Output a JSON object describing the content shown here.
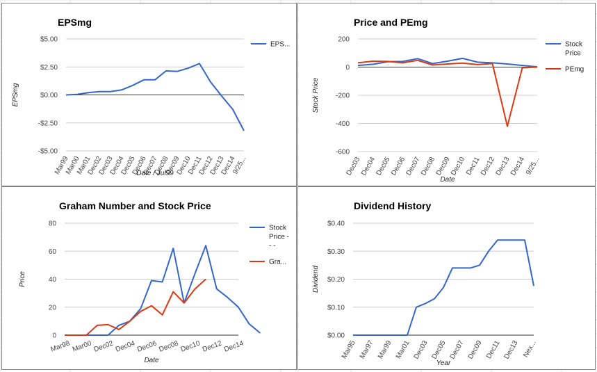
{
  "chart_data": [
    {
      "id": "eps",
      "type": "line",
      "title": "EPSmg",
      "xlabel": "Date / Jul99",
      "ylabel": "EPSmg",
      "categories": [
        "Mar99",
        "Mar00",
        "Mar01",
        "Dec02",
        "Dec03",
        "Dec04",
        "Dec05",
        "Dec06",
        "Dec07",
        "Dec08",
        "Dec09",
        "Dec10",
        "Dec11",
        "Dec12",
        "Dec13",
        "Dec14",
        "9/25..."
      ],
      "x_index": [
        0,
        0.5,
        1,
        1.5,
        2,
        2.5,
        3,
        3.5,
        4,
        4.5,
        5,
        5.5,
        6,
        6.5,
        7,
        7.5,
        8,
        8.5,
        9,
        9.5,
        10,
        10.5,
        11,
        11.5,
        12,
        12.5,
        13,
        13.5,
        14,
        14.5,
        15,
        15.5,
        16
      ],
      "series": [
        {
          "name": "EPS...",
          "color": "#3366cc",
          "x": [
            0,
            1,
            2,
            3,
            4,
            5,
            6,
            7,
            8,
            9,
            10,
            11,
            12,
            13,
            14,
            15,
            16
          ],
          "values": [
            0.0,
            0.05,
            0.2,
            0.3,
            0.3,
            0.45,
            0.85,
            1.35,
            1.35,
            2.15,
            2.1,
            2.4,
            2.8,
            1.15,
            -0.1,
            -1.3,
            -3.2
          ]
        }
      ],
      "yticks": [
        5,
        2.5,
        0,
        -2.5,
        -5
      ],
      "ytick_labels": [
        "$5.00",
        "$2.50",
        "$0.00",
        "-$2.50",
        "-$5.00"
      ],
      "ylim": [
        -5,
        5
      ],
      "legend": "right"
    },
    {
      "id": "pe",
      "type": "line",
      "title": "Price and PEmg",
      "xlabel": "Date",
      "ylabel": "Stock Price",
      "categories": [
        "Dec03",
        "Dec04",
        "Dec05",
        "Dec06",
        "Dec07",
        "Dec08",
        "Dec09",
        "Dec10",
        "Dec11",
        "Dec12",
        "Dec13",
        "Dec14",
        "9/25..."
      ],
      "series": [
        {
          "name": "Stock Price",
          "color": "#3366cc",
          "values": [
            12,
            20,
            38,
            40,
            60,
            25,
            42,
            62,
            35,
            30,
            22,
            12,
            2
          ]
        },
        {
          "name": "PEmg",
          "color": "#dc3912",
          "values": [
            30,
            42,
            40,
            30,
            48,
            15,
            22,
            28,
            18,
            25,
            -420,
            -5,
            0
          ]
        }
      ],
      "yticks": [
        200,
        0,
        -200,
        -400,
        -600
      ],
      "ytick_labels": [
        "200",
        "0",
        "-200",
        "-400",
        "-600"
      ],
      "ylim": [
        -600,
        200
      ],
      "legend": "right"
    },
    {
      "id": "graham",
      "type": "line",
      "title": "Graham Number and Stock Price",
      "xlabel": "Date",
      "ylabel": "Price",
      "categories": [
        "Mar98",
        "Mar00",
        "Dec02",
        "Dec04",
        "Dec06",
        "Dec08",
        "Dec10",
        "Dec12",
        "Dec14"
      ],
      "series": [
        {
          "name": "Stock Price - - -",
          "color": "#3366cc",
          "x": [
            0,
            1,
            2,
            2.5,
            3,
            3.5,
            4,
            4.5,
            5,
            5.5,
            6,
            6.5,
            7,
            7.5,
            8,
            8.5,
            9
          ],
          "values": [
            0,
            0,
            0,
            7,
            10,
            19,
            39,
            38,
            62,
            23,
            44,
            64,
            33,
            27,
            20,
            8,
            1.5
          ]
        },
        {
          "name": "Gra...",
          "color": "#dc3912",
          "x": [
            0,
            1,
            1.5,
            2,
            2.5,
            3,
            3.5,
            4,
            4.5,
            5,
            5.5,
            6,
            6.5,
            7
          ],
          "values": [
            0,
            0,
            7,
            7.5,
            4,
            10,
            17,
            21,
            14.5,
            31,
            23,
            33,
            40,
            null
          ]
        }
      ],
      "yticks": [
        80,
        60,
        40,
        20,
        0
      ],
      "ytick_labels": [
        "80",
        "60",
        "40",
        "20",
        "0"
      ],
      "ylim": [
        0,
        80
      ],
      "legend": "right"
    },
    {
      "id": "div",
      "type": "line",
      "title": "Dividend History",
      "xlabel": "Year",
      "ylabel": "Dividend",
      "categories": [
        "Mar95",
        "Mar97",
        "Mar99",
        "Mar01",
        "Dec03",
        "Dec05",
        "Dec07",
        "Dec09",
        "Dec11",
        "Dec13",
        "Nex..."
      ],
      "series": [
        {
          "name": "",
          "color": "#3366cc",
          "x": [
            0,
            1,
            2,
            3,
            3.5,
            4,
            4.5,
            5,
            5.5,
            6,
            6.5,
            7,
            7.5,
            8,
            8.5,
            9,
            9.5,
            10
          ],
          "values": [
            0,
            0,
            0,
            0,
            0.1,
            0.113,
            0.13,
            0.17,
            0.24,
            0.24,
            0.24,
            0.25,
            0.3,
            0.34,
            0.34,
            0.34,
            0.34,
            0.176
          ]
        }
      ],
      "yticks": [
        0.4,
        0.3,
        0.2,
        0.1,
        0
      ],
      "ytick_labels": [
        "$0.40",
        "$0.30",
        "$0.20",
        "$0.10",
        "$0.00"
      ],
      "ylim": [
        0,
        0.4
      ],
      "legend": "none"
    }
  ]
}
